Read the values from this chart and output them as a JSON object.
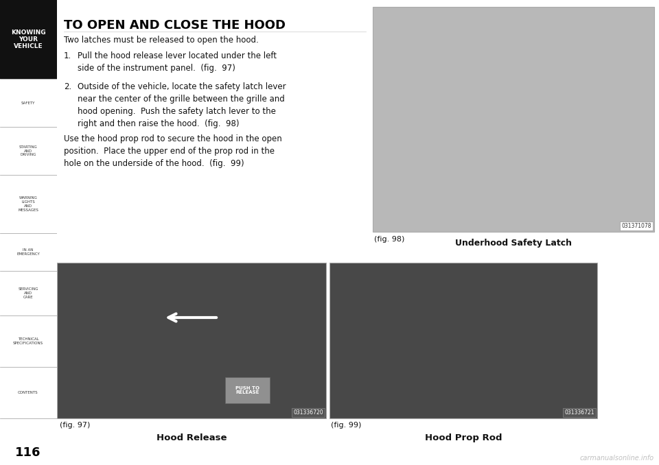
{
  "page_bg": "#ffffff",
  "sidebar_bg": "#d8d8d8",
  "sidebar_top_color": "#111111",
  "sidebar_top_text": "KNOWING\nYOUR\nVEHICLE",
  "sidebar_items": [
    "SAFETY",
    "STARTING\nAND\nDRIVING",
    "WARNING\nLIGHTS\nAND\nMESSAGES",
    "IN AN\nEMERGENCY",
    "SERVICING\nAND\nCARE",
    "TECHNICAL\nSPECIFICATIONS",
    "CONTENTS"
  ],
  "page_number": "116",
  "title": "TO OPEN AND CLOSE THE HOOD",
  "intro": "Two latches must be released to open the hood.",
  "step1_num": "1.",
  "step1_text": "Pull the hood release lever located under the left\nside of the instrument panel.  (fig.  97)",
  "step2_num": "2.",
  "step2_text": "Outside of the vehicle, locate the safety latch lever\nnear the center of the grille between the grille and\nhood opening.  Push the safety latch lever to the\nright and then raise the hood.  (fig.  98)",
  "para3": "Use the hood prop rod to secure the hood in the open\nposition.  Place the upper end of the prop rod in the\nhole on the underside of the hood.  (fig.  99)",
  "fig97_label": "(fig. 97)",
  "fig97_caption": "Hood Release",
  "fig97_code": "031336720",
  "fig98_label": "(fig. 98)",
  "fig98_caption": "Underhood Safety Latch",
  "fig98_code": "031371078",
  "fig99_label": "(fig. 99)",
  "fig99_caption": "Hood Prop Rod",
  "fig99_code": "031336721",
  "text_color": "#111111",
  "title_color": "#000000",
  "divider_color": "#999999",
  "img98_color": "#b8b8b8",
  "img97_color": "#484848",
  "img99_color": "#484848",
  "watermark_color": "#c0c0c0"
}
